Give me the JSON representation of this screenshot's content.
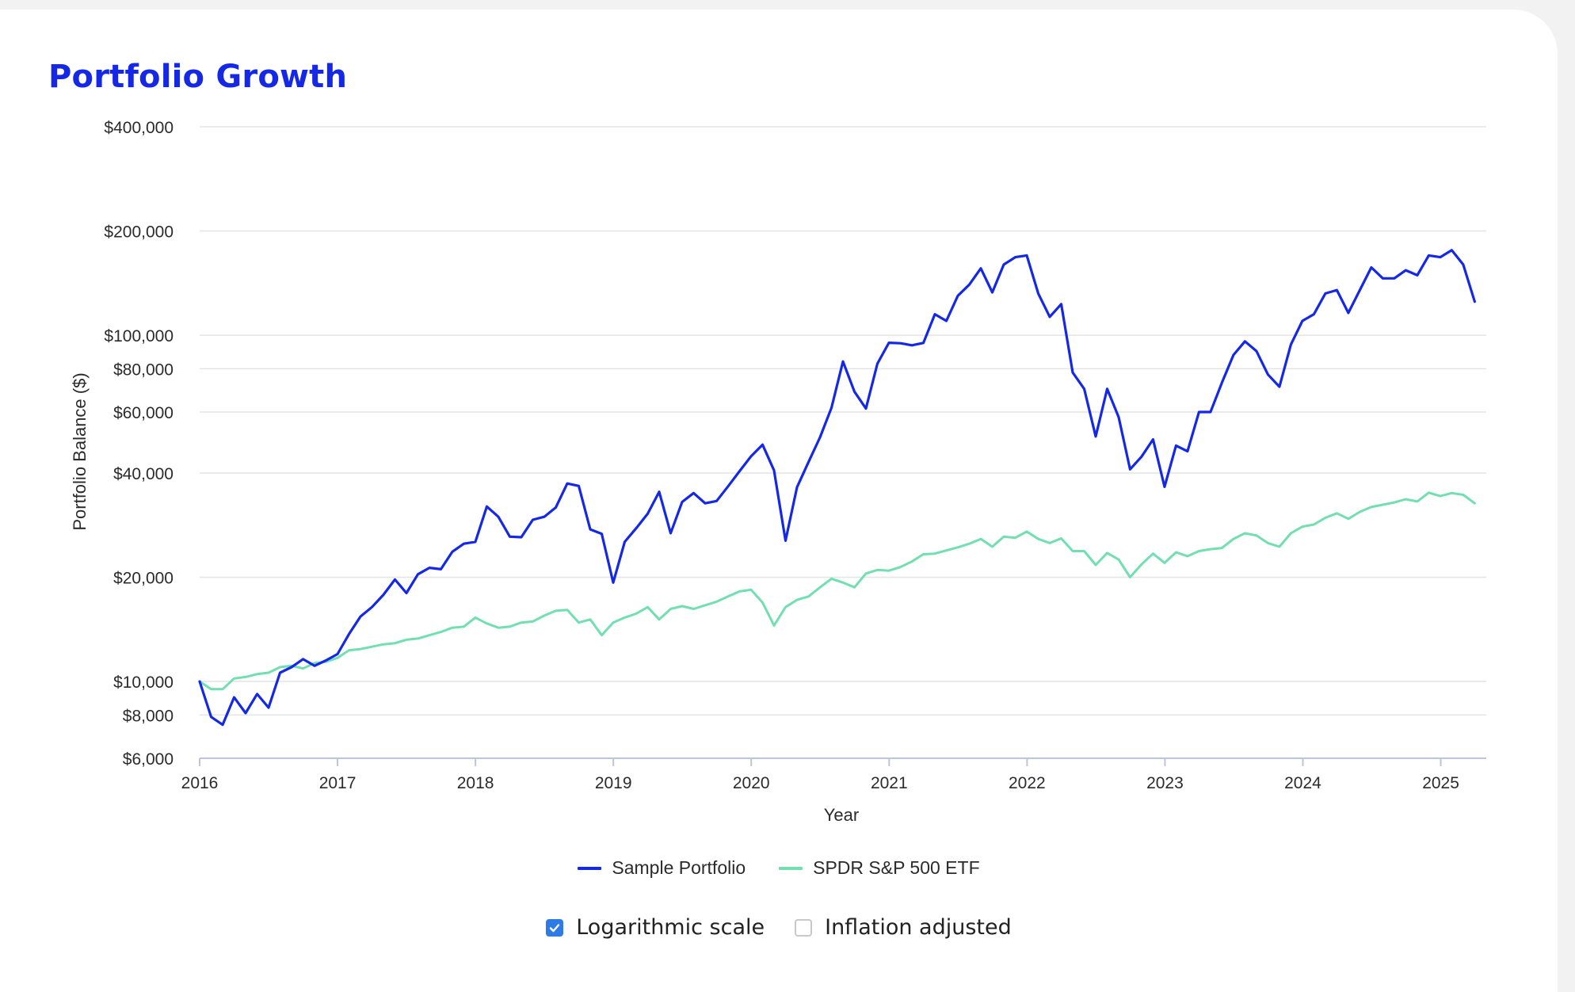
{
  "title": "Portfolio Growth",
  "controls": [
    {
      "label": "Logarithmic scale",
      "checked": true
    },
    {
      "label": "Inflation adjusted",
      "checked": false
    }
  ],
  "chart_data": {
    "type": "line",
    "xlabel": "Year",
    "ylabel": "Portfolio Balance ($)",
    "y_scale": "log",
    "ylim": [
      6000,
      400000
    ],
    "xlim": [
      2016,
      2025.33
    ],
    "y_ticks": [
      6000,
      8000,
      10000,
      20000,
      40000,
      60000,
      80000,
      100000,
      200000,
      400000
    ],
    "y_tick_labels": [
      "$6,000",
      "$8,000",
      "$10,000",
      "$20,000",
      "$40,000",
      "$60,000",
      "$80,000",
      "$100,000",
      "$200,000",
      "$400,000"
    ],
    "x_ticks": [
      2016,
      2017,
      2018,
      2019,
      2020,
      2021,
      2022,
      2023,
      2024,
      2025
    ],
    "x_tick_labels": [
      "2016",
      "2017",
      "2018",
      "2019",
      "2020",
      "2021",
      "2022",
      "2023",
      "2024",
      "2025"
    ],
    "grid": "horizontal",
    "legend_position": "bottom-center",
    "x_start": 2016,
    "x_step_years": 0.0833,
    "series": [
      {
        "name": "Sample Portfolio",
        "color": "#1428e6",
        "values": [
          10000,
          7900,
          7500,
          9000,
          8100,
          9200,
          8400,
          10600,
          11000,
          11600,
          11100,
          11500,
          12000,
          13700,
          15400,
          16400,
          17800,
          19700,
          18000,
          20400,
          21300,
          21100,
          23700,
          25000,
          25300,
          32000,
          29900,
          26200,
          26100,
          29300,
          29900,
          31800,
          37300,
          36700,
          27500,
          26700,
          19300,
          25300,
          27700,
          30500,
          35300,
          26800,
          33000,
          35000,
          32700,
          33200,
          36600,
          40500,
          44700,
          48300,
          40700,
          25500,
          36400,
          43000,
          50700,
          61700,
          84000,
          68700,
          61400,
          82800,
          95100,
          94800,
          93500,
          95000,
          115000,
          110000,
          130000,
          140000,
          156000,
          133000,
          160000,
          168000,
          170000,
          132000,
          113000,
          123000,
          78000,
          70000,
          51000,
          70000,
          58000,
          41000,
          44600,
          50000,
          36500,
          48000,
          46200,
          60000,
          60000,
          73000,
          87700,
          96000,
          90000,
          77000,
          71000,
          94000,
          110000,
          115000,
          132000,
          135000,
          116000,
          135000,
          157000,
          146000,
          146000,
          154000,
          149000,
          170000,
          168000,
          176000,
          160000,
          125000
        ]
      },
      {
        "name": "SPDR S&P 500 ETF",
        "color": "#72dfb0",
        "values": [
          10000,
          9500,
          9500,
          10200,
          10300,
          10500,
          10600,
          11000,
          11100,
          10900,
          11300,
          11400,
          11700,
          12300,
          12400,
          12600,
          12800,
          12900,
          13200,
          13300,
          13600,
          13900,
          14300,
          14400,
          15300,
          14700,
          14300,
          14400,
          14800,
          14900,
          15500,
          16000,
          16100,
          14800,
          15100,
          13600,
          14800,
          15300,
          15700,
          16400,
          15100,
          16200,
          16500,
          16200,
          16600,
          17000,
          17600,
          18200,
          18400,
          16900,
          14500,
          16400,
          17200,
          17600,
          18700,
          19800,
          19300,
          18700,
          20500,
          21000,
          20900,
          21400,
          22200,
          23300,
          23400,
          23900,
          24400,
          25000,
          25800,
          24500,
          26200,
          26000,
          27100,
          25800,
          25100,
          25900,
          23800,
          23800,
          21700,
          23500,
          22500,
          20000,
          21800,
          23400,
          22000,
          23600,
          23000,
          23800,
          24100,
          24300,
          25800,
          26800,
          26400,
          25100,
          24500,
          26800,
          28000,
          28400,
          29700,
          30600,
          29500,
          30900,
          31900,
          32400,
          32900,
          33600,
          33100,
          35100,
          34300,
          35000,
          34600,
          32700
        ]
      }
    ]
  }
}
